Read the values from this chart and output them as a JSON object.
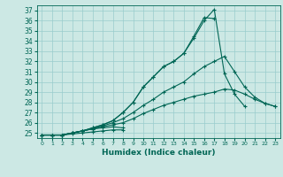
{
  "xlabel": "Humidex (Indice chaleur)",
  "bg_color": "#cce8e4",
  "grid_color": "#99cccc",
  "line_color": "#006655",
  "xlim": [
    -0.5,
    23.5
  ],
  "ylim": [
    24.5,
    37.5
  ],
  "yticks": [
    25,
    26,
    27,
    28,
    29,
    30,
    31,
    32,
    33,
    34,
    35,
    36,
    37
  ],
  "xticks": [
    0,
    1,
    2,
    3,
    4,
    5,
    6,
    7,
    8,
    9,
    10,
    11,
    12,
    13,
    14,
    15,
    16,
    17,
    18,
    19,
    20,
    21,
    22,
    23
  ],
  "lines": [
    {
      "x": [
        0,
        1,
        2,
        3,
        4,
        5,
        6,
        7,
        8
      ],
      "y": [
        24.8,
        24.8,
        24.8,
        24.9,
        25.0,
        25.1,
        25.2,
        25.3,
        25.3
      ]
    },
    {
      "x": [
        0,
        1,
        2,
        3,
        4,
        5,
        6,
        7,
        8
      ],
      "y": [
        24.8,
        24.8,
        24.8,
        25.0,
        25.2,
        25.4,
        25.5,
        25.6,
        25.5
      ]
    },
    {
      "x": [
        0,
        1,
        2,
        3,
        4,
        5,
        6,
        7,
        8,
        9,
        10,
        11,
        12,
        13,
        14,
        15,
        16,
        17,
        18,
        19,
        20,
        21,
        22,
        23
      ],
      "y": [
        24.8,
        24.8,
        24.8,
        25.0,
        25.2,
        25.4,
        25.6,
        25.8,
        26.0,
        26.4,
        26.9,
        27.3,
        27.7,
        28.0,
        28.3,
        28.6,
        28.8,
        29.0,
        29.3,
        29.2,
        28.8,
        28.3,
        27.9,
        27.6
      ]
    },
    {
      "x": [
        0,
        1,
        2,
        3,
        4,
        5,
        6,
        7,
        8,
        9,
        10,
        11,
        12,
        13,
        14,
        15,
        16,
        17,
        18,
        19,
        20,
        21,
        22,
        23
      ],
      "y": [
        24.8,
        24.8,
        24.8,
        25.0,
        25.2,
        25.4,
        25.7,
        26.0,
        26.4,
        27.0,
        27.7,
        28.3,
        29.0,
        29.5,
        30.0,
        30.8,
        31.5,
        32.0,
        32.5,
        31.0,
        29.5,
        28.5,
        27.9,
        27.6
      ]
    },
    {
      "x": [
        0,
        1,
        2,
        3,
        4,
        5,
        6,
        7,
        8,
        9,
        10,
        11,
        12,
        13,
        14,
        15,
        16,
        17,
        18,
        19,
        20
      ],
      "y": [
        24.8,
        24.8,
        24.8,
        25.0,
        25.2,
        25.5,
        25.8,
        26.2,
        27.0,
        28.0,
        29.5,
        30.5,
        31.5,
        32.0,
        32.8,
        34.3,
        36.0,
        37.1,
        30.8,
        28.8,
        27.6
      ]
    },
    {
      "x": [
        0,
        1,
        2,
        3,
        4,
        5,
        6,
        7,
        8,
        9,
        10,
        11,
        12,
        13,
        14,
        15,
        16,
        17
      ],
      "y": [
        24.8,
        24.8,
        24.8,
        25.0,
        25.2,
        25.5,
        25.8,
        26.2,
        27.0,
        28.0,
        29.5,
        30.5,
        31.5,
        32.0,
        32.8,
        34.5,
        36.3,
        36.2
      ]
    }
  ]
}
